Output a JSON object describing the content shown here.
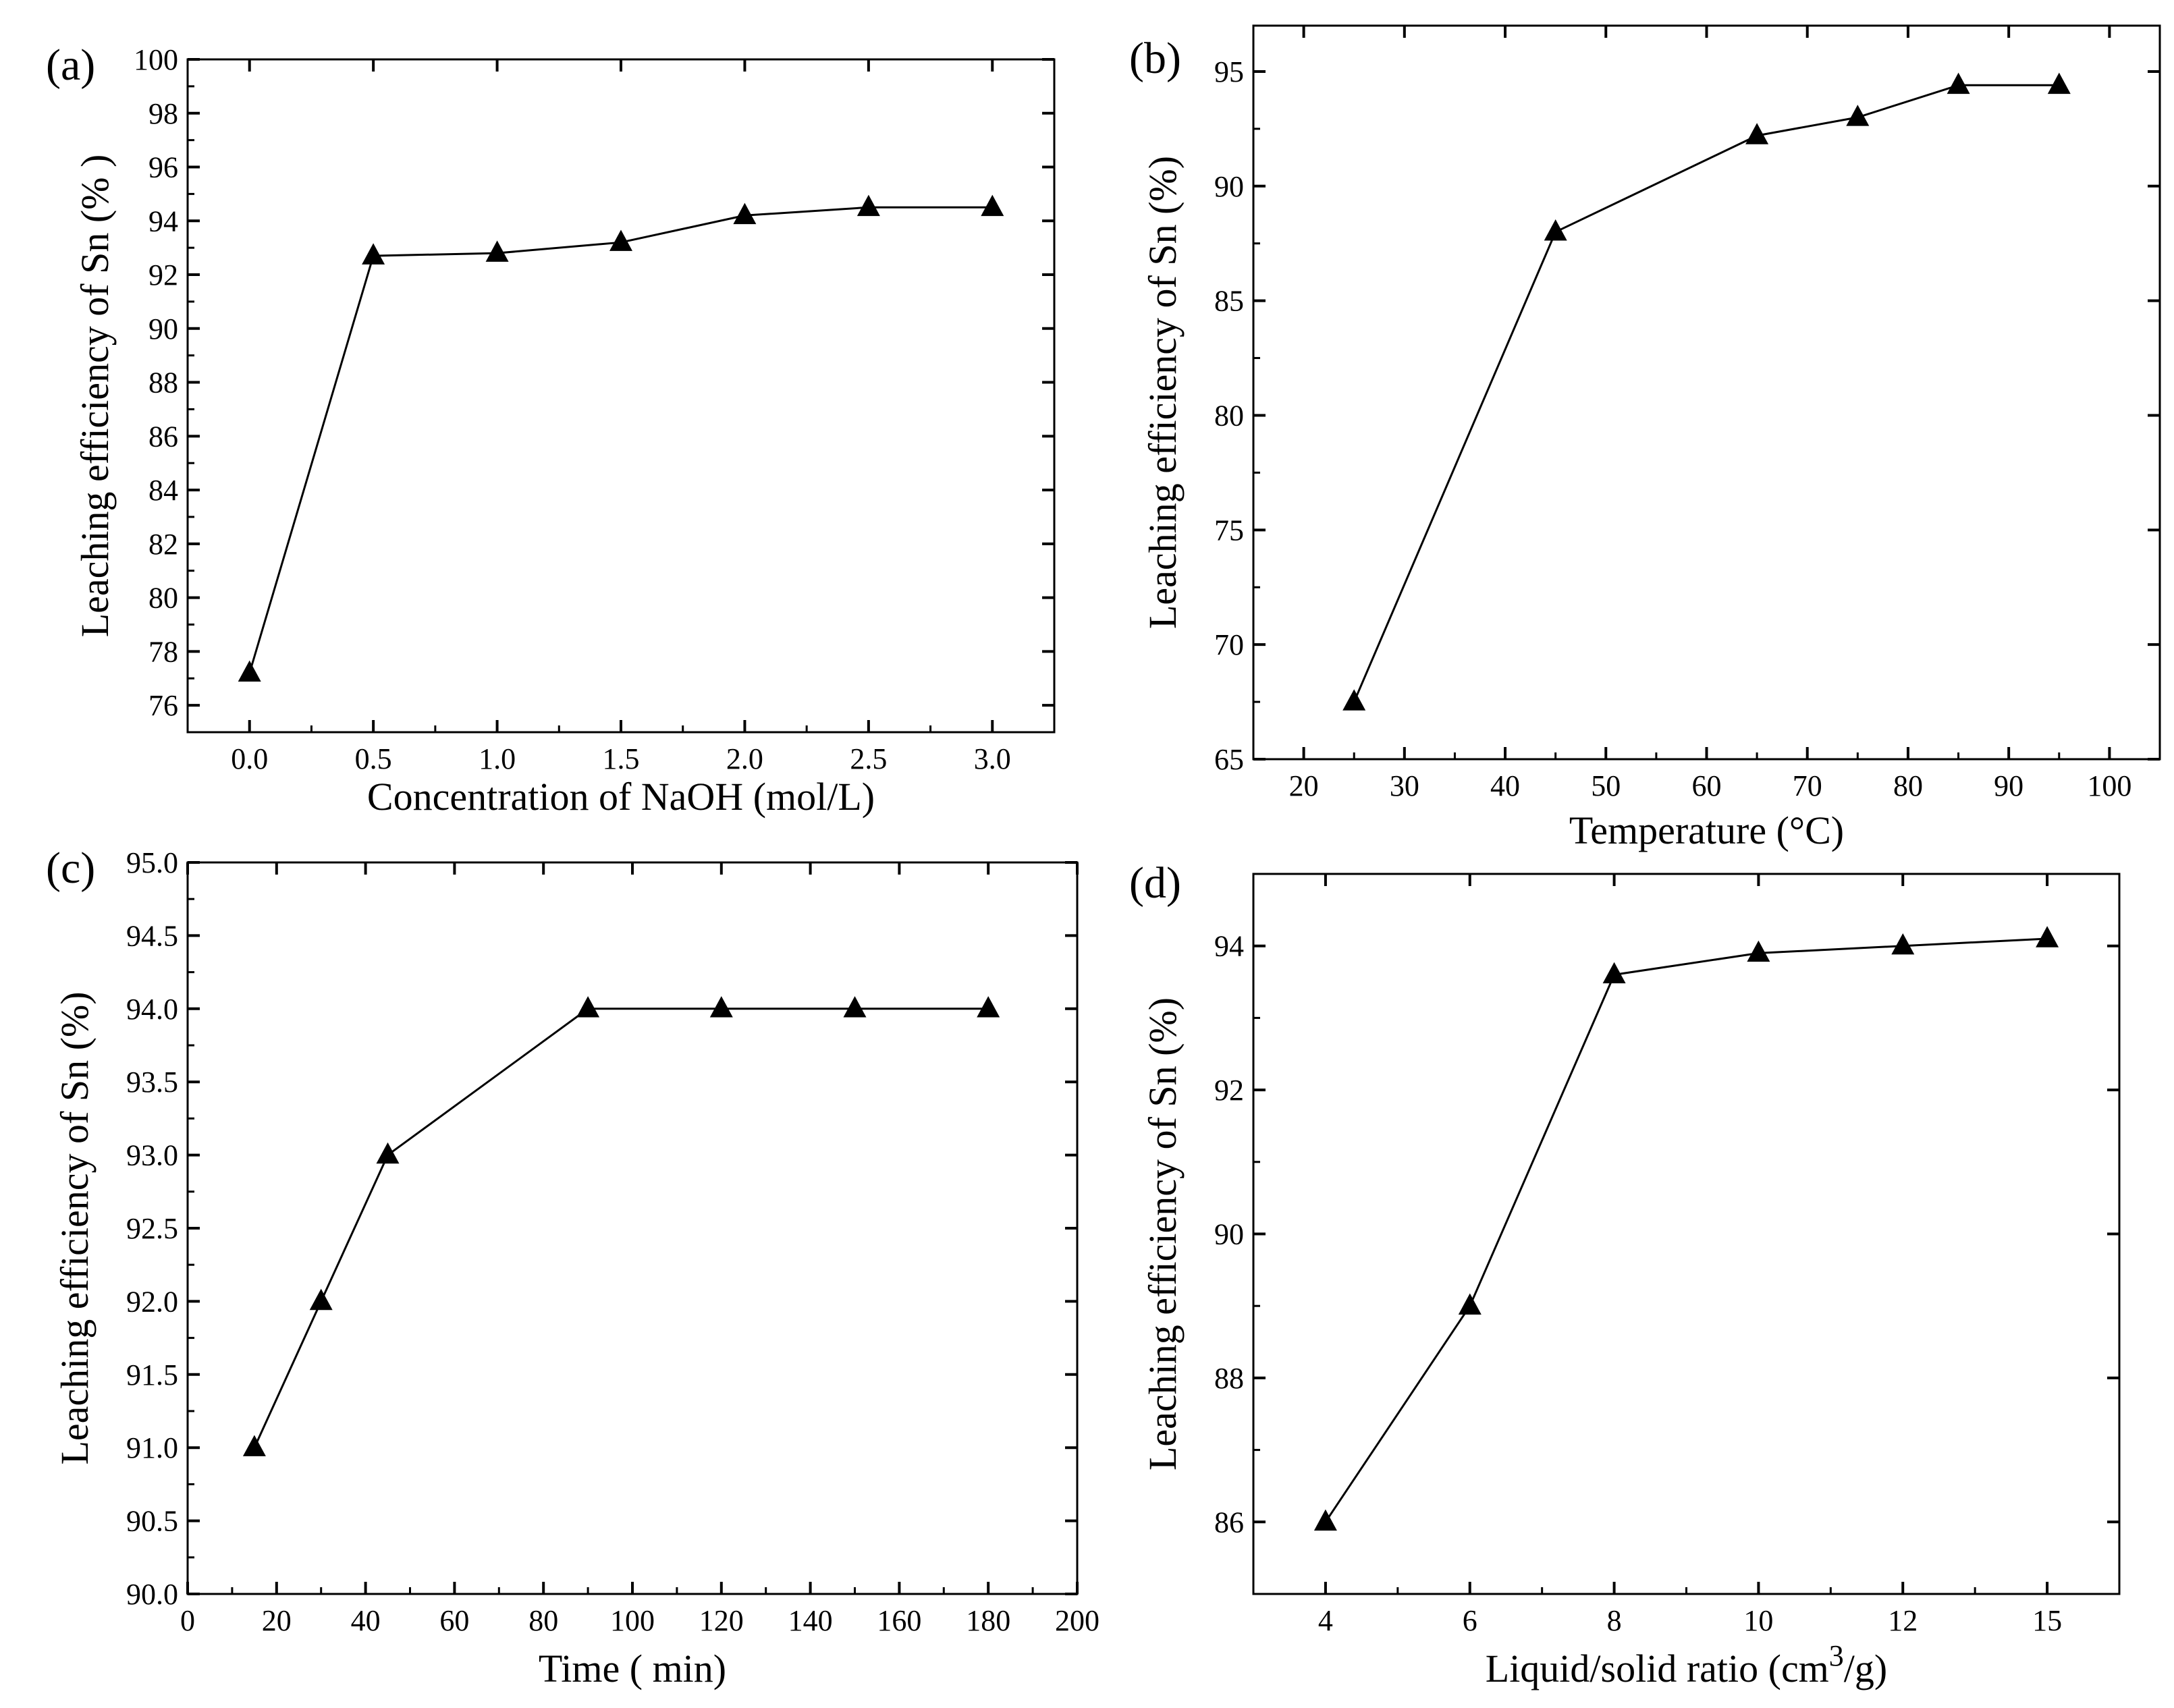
{
  "chart_data": [
    {
      "type": "line",
      "panel": "(a)",
      "xlabel": "Concentration of NaOH  (mol/L)",
      "ylabel": "Leaching efficiency of Sn (% )",
      "xlim": [
        -0.25,
        3.25
      ],
      "ylim": [
        75,
        100
      ],
      "x_ticks": [
        0.0,
        0.5,
        1.0,
        1.5,
        2.0,
        2.5,
        3.0
      ],
      "x_tick_labels": [
        "0.0",
        "0.5",
        "1.0",
        "1.5",
        "2.0",
        "2.5",
        "3.0"
      ],
      "y_ticks": [
        76,
        78,
        80,
        82,
        84,
        86,
        88,
        90,
        92,
        94,
        96,
        98,
        100
      ],
      "y_tick_labels": [
        "76",
        "78",
        "80",
        "82",
        "84",
        "86",
        "88",
        "90",
        "92",
        "94",
        "96",
        "98",
        "100"
      ],
      "marker": "triangle-up",
      "series": [
        {
          "name": "Sn",
          "x": [
            0.0,
            0.5,
            1.0,
            1.5,
            2.0,
            2.5,
            3.0
          ],
          "y": [
            77.2,
            92.7,
            92.8,
            93.2,
            94.2,
            94.5,
            94.5
          ]
        }
      ]
    },
    {
      "type": "line",
      "panel": "(b)",
      "xlabel": "Temperature (°C)",
      "ylabel": "Leaching efficiency of Sn (%)",
      "xlim": [
        15,
        105
      ],
      "ylim": [
        65,
        97
      ],
      "x_ticks": [
        20,
        30,
        40,
        50,
        60,
        70,
        80,
        90,
        100
      ],
      "x_tick_labels": [
        "20",
        "30",
        "40",
        "50",
        "60",
        "70",
        "80",
        "90",
        "100"
      ],
      "y_ticks": [
        65,
        70,
        75,
        80,
        85,
        90,
        95
      ],
      "y_tick_labels": [
        "65",
        "70",
        "75",
        "80",
        "85",
        "90",
        "95"
      ],
      "marker": "triangle-up",
      "series": [
        {
          "name": "Sn",
          "x": [
            25,
            45,
            65,
            75,
            85,
            95
          ],
          "y": [
            67.5,
            88.0,
            92.2,
            93.0,
            94.4,
            94.4
          ]
        }
      ]
    },
    {
      "type": "line",
      "panel": "(c)",
      "xlabel": "Time ( min)",
      "ylabel": "Leaching efficiency of Sn (%)",
      "xlim": [
        0,
        200
      ],
      "ylim": [
        90,
        95
      ],
      "x_ticks": [
        0,
        20,
        40,
        60,
        80,
        100,
        120,
        140,
        160,
        180,
        200
      ],
      "x_tick_labels": [
        "0",
        "20",
        "40",
        "60",
        "80",
        "100",
        "120",
        "140",
        "160",
        "180",
        "200"
      ],
      "y_ticks": [
        90.0,
        90.5,
        91.0,
        91.5,
        92.0,
        92.5,
        93.0,
        93.5,
        94.0,
        94.5,
        95.0
      ],
      "y_tick_labels": [
        "90.0",
        "90.5",
        "91.0",
        "91.5",
        "92.0",
        "92.5",
        "93.0",
        "93.5",
        "94.0",
        "94.5",
        "95.0"
      ],
      "marker": "triangle-up",
      "series": [
        {
          "name": "Sn",
          "x": [
            15,
            30,
            45,
            90,
            120,
            150,
            180
          ],
          "y": [
            91.0,
            92.0,
            93.0,
            94.0,
            94.0,
            94.0,
            94.0
          ]
        }
      ]
    },
    {
      "type": "line",
      "panel": "(d)",
      "xlabel": "Liquid/solid ratio (cm",
      "xlabel_sup": "3",
      "xlabel_end": "/g)",
      "ylabel": "Leaching efficiency of Sn (%)",
      "xlim": [
        -0.5,
        5.5
      ],
      "ylim": [
        85,
        95
      ],
      "x_ticks": [
        0,
        1,
        2,
        3,
        4,
        5
      ],
      "x_tick_labels": [
        "4",
        "6",
        "8",
        "10",
        "12",
        "15"
      ],
      "y_ticks": [
        86,
        88,
        90,
        92,
        94
      ],
      "y_tick_labels": [
        "86",
        "88",
        "90",
        "92",
        "94"
      ],
      "marker": "triangle-up",
      "series": [
        {
          "name": "Sn",
          "x": [
            0,
            1,
            2,
            3,
            4,
            5
          ],
          "y": [
            86.0,
            89.0,
            93.6,
            93.9,
            94.0,
            94.1
          ]
        }
      ]
    }
  ]
}
